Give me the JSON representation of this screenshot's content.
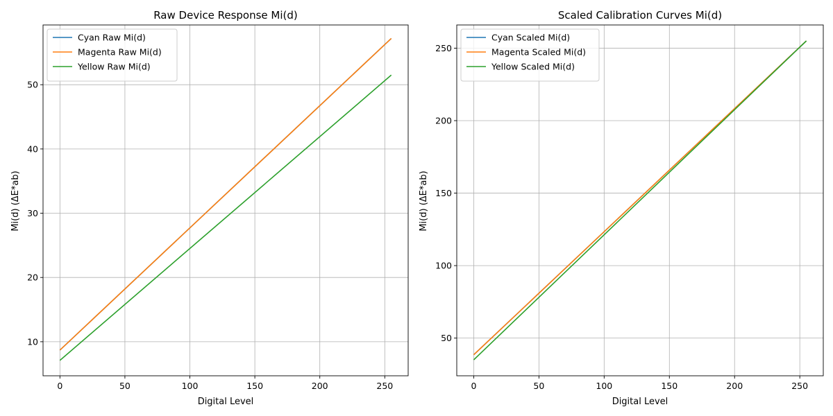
{
  "chart_data": [
    {
      "type": "line",
      "title": "Raw Device Response Mi(d)",
      "xlabel": "Digital Level",
      "ylabel": "Mi(d) (ΔE*ab)",
      "xlim": [
        -13,
        268
      ],
      "ylim": [
        4.7,
        59.3
      ],
      "xticks": [
        0,
        50,
        100,
        150,
        200,
        250
      ],
      "yticks": [
        10,
        20,
        30,
        40,
        50
      ],
      "grid": true,
      "legend_position": "upper-left",
      "series": [
        {
          "name": "Cyan Raw Mi(d)",
          "color": "#1f77b4",
          "x": [
            0,
            255
          ],
          "y": [
            8.7,
            57.2
          ]
        },
        {
          "name": "Magenta Raw Mi(d)",
          "color": "#ff7f0e",
          "x": [
            0,
            255
          ],
          "y": [
            8.7,
            57.2
          ]
        },
        {
          "name": "Yellow Raw Mi(d)",
          "color": "#2ca02c",
          "x": [
            0,
            255
          ],
          "y": [
            7.1,
            51.5
          ]
        }
      ]
    },
    {
      "type": "line",
      "title": "Scaled Calibration Curves Mi(d)",
      "xlabel": "Digital Level",
      "ylabel": "Mi(d) (ΔE*ab)",
      "xlim": [
        -13,
        268
      ],
      "ylim": [
        24,
        266
      ],
      "xticks": [
        0,
        50,
        100,
        150,
        200,
        250
      ],
      "yticks": [
        50,
        100,
        150,
        200,
        250
      ],
      "grid": true,
      "legend_position": "upper-left",
      "series": [
        {
          "name": "Cyan Scaled Mi(d)",
          "color": "#1f77b4",
          "x": [
            0,
            255
          ],
          "y": [
            38.5,
            255
          ]
        },
        {
          "name": "Magenta Scaled Mi(d)",
          "color": "#ff7f0e",
          "x": [
            0,
            255
          ],
          "y": [
            38.5,
            255
          ]
        },
        {
          "name": "Yellow Scaled Mi(d)",
          "color": "#2ca02c",
          "x": [
            0,
            255
          ],
          "y": [
            35,
            255
          ]
        }
      ]
    }
  ]
}
